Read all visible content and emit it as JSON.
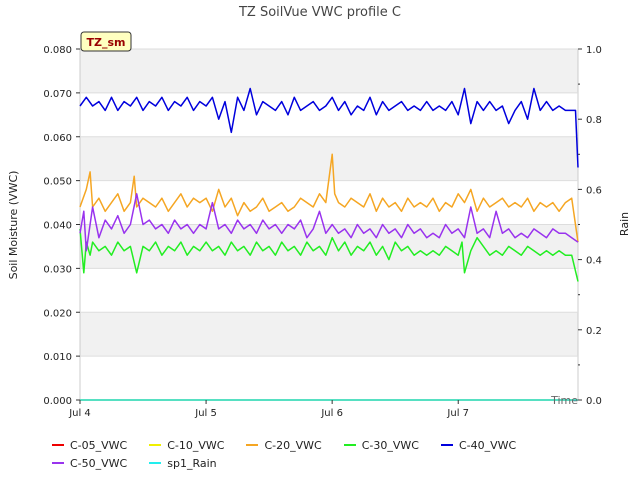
{
  "chart_data": {
    "type": "line",
    "title": "TZ SoilVue VWC profile C",
    "site_badge": "TZ_sm",
    "xlabel": "Time",
    "ylabel": "Soil Moisture (VWC)",
    "y2label": "Rain",
    "xlim": [
      0,
      3.95
    ],
    "ylim": [
      0,
      0.08
    ],
    "y2lim": [
      0,
      1.0
    ],
    "x_ticks": [
      {
        "value": 0,
        "label": "Jul 4"
      },
      {
        "value": 1,
        "label": "Jul 5"
      },
      {
        "value": 2,
        "label": "Jul 6"
      },
      {
        "value": 3,
        "label": "Jul 7"
      }
    ],
    "y_ticks": [
      "0.000",
      "0.010",
      "0.020",
      "0.030",
      "0.040",
      "0.050",
      "0.060",
      "0.070",
      "0.080"
    ],
    "y2_ticks": [
      "0.0",
      "0.2",
      "0.4",
      "0.6",
      "0.8",
      "1.0"
    ],
    "grid": true,
    "legend_position": "bottom",
    "series": [
      {
        "name": "C-05_VWC",
        "color": "#ee0000",
        "axis": "left",
        "x": [
          0,
          3.95
        ],
        "y": [
          0,
          0
        ]
      },
      {
        "name": "C-10_VWC",
        "color": "#f0f000",
        "axis": "left",
        "x": [
          0,
          3.95
        ],
        "y": [
          0,
          0
        ]
      },
      {
        "name": "C-20_VWC",
        "color": "#f5a623",
        "axis": "left",
        "x": [
          0,
          0.05,
          0.08,
          0.1,
          0.15,
          0.2,
          0.25,
          0.3,
          0.35,
          0.4,
          0.43,
          0.45,
          0.5,
          0.55,
          0.6,
          0.65,
          0.7,
          0.75,
          0.8,
          0.85,
          0.9,
          0.95,
          1.0,
          1.05,
          1.1,
          1.15,
          1.2,
          1.25,
          1.3,
          1.35,
          1.4,
          1.45,
          1.5,
          1.55,
          1.6,
          1.65,
          1.7,
          1.75,
          1.8,
          1.85,
          1.9,
          1.95,
          2.0,
          2.02,
          2.05,
          2.1,
          2.15,
          2.2,
          2.25,
          2.3,
          2.35,
          2.4,
          2.45,
          2.5,
          2.55,
          2.6,
          2.65,
          2.7,
          2.75,
          2.8,
          2.85,
          2.9,
          2.95,
          3.0,
          3.05,
          3.1,
          3.15,
          3.2,
          3.25,
          3.3,
          3.35,
          3.4,
          3.45,
          3.5,
          3.55,
          3.6,
          3.65,
          3.7,
          3.75,
          3.8,
          3.85,
          3.9,
          3.95
        ],
        "y": [
          0.044,
          0.048,
          0.052,
          0.044,
          0.046,
          0.043,
          0.045,
          0.047,
          0.043,
          0.045,
          0.051,
          0.044,
          0.046,
          0.045,
          0.044,
          0.046,
          0.043,
          0.045,
          0.047,
          0.044,
          0.046,
          0.045,
          0.046,
          0.043,
          0.048,
          0.044,
          0.046,
          0.042,
          0.045,
          0.043,
          0.044,
          0.046,
          0.043,
          0.044,
          0.045,
          0.043,
          0.044,
          0.046,
          0.045,
          0.044,
          0.047,
          0.045,
          0.056,
          0.047,
          0.045,
          0.044,
          0.046,
          0.045,
          0.044,
          0.047,
          0.043,
          0.046,
          0.044,
          0.045,
          0.043,
          0.046,
          0.044,
          0.045,
          0.044,
          0.046,
          0.043,
          0.045,
          0.044,
          0.047,
          0.045,
          0.048,
          0.043,
          0.046,
          0.044,
          0.045,
          0.046,
          0.044,
          0.045,
          0.044,
          0.046,
          0.043,
          0.045,
          0.044,
          0.045,
          0.043,
          0.045,
          0.046,
          0.036
        ]
      },
      {
        "name": "C-30_VWC",
        "color": "#22ee22",
        "axis": "left",
        "x": [
          0,
          0.03,
          0.05,
          0.08,
          0.1,
          0.15,
          0.2,
          0.25,
          0.3,
          0.35,
          0.4,
          0.45,
          0.5,
          0.55,
          0.6,
          0.65,
          0.7,
          0.75,
          0.8,
          0.85,
          0.9,
          0.95,
          1.0,
          1.05,
          1.1,
          1.15,
          1.2,
          1.25,
          1.3,
          1.35,
          1.4,
          1.45,
          1.5,
          1.55,
          1.6,
          1.65,
          1.7,
          1.75,
          1.8,
          1.85,
          1.9,
          1.95,
          2.0,
          2.05,
          2.1,
          2.15,
          2.2,
          2.25,
          2.3,
          2.35,
          2.4,
          2.45,
          2.5,
          2.55,
          2.6,
          2.65,
          2.7,
          2.75,
          2.8,
          2.85,
          2.9,
          2.95,
          3.0,
          3.03,
          3.05,
          3.1,
          3.15,
          3.2,
          3.25,
          3.3,
          3.35,
          3.4,
          3.45,
          3.5,
          3.55,
          3.6,
          3.65,
          3.7,
          3.75,
          3.8,
          3.85,
          3.9,
          3.95
        ],
        "y": [
          0.039,
          0.029,
          0.036,
          0.033,
          0.036,
          0.034,
          0.035,
          0.033,
          0.036,
          0.034,
          0.035,
          0.029,
          0.035,
          0.034,
          0.036,
          0.033,
          0.035,
          0.034,
          0.036,
          0.033,
          0.035,
          0.034,
          0.036,
          0.034,
          0.035,
          0.033,
          0.036,
          0.034,
          0.035,
          0.033,
          0.036,
          0.034,
          0.035,
          0.033,
          0.036,
          0.034,
          0.035,
          0.033,
          0.036,
          0.034,
          0.035,
          0.033,
          0.037,
          0.034,
          0.036,
          0.033,
          0.035,
          0.034,
          0.036,
          0.033,
          0.035,
          0.032,
          0.036,
          0.034,
          0.035,
          0.033,
          0.034,
          0.033,
          0.034,
          0.033,
          0.035,
          0.034,
          0.033,
          0.036,
          0.029,
          0.034,
          0.037,
          0.035,
          0.033,
          0.034,
          0.033,
          0.035,
          0.034,
          0.033,
          0.035,
          0.034,
          0.033,
          0.034,
          0.033,
          0.034,
          0.033,
          0.033,
          0.027
        ]
      },
      {
        "name": "C-40_VWC",
        "color": "#0000dd",
        "axis": "left",
        "x": [
          0,
          0.05,
          0.1,
          0.15,
          0.2,
          0.25,
          0.3,
          0.35,
          0.4,
          0.45,
          0.5,
          0.55,
          0.6,
          0.65,
          0.7,
          0.75,
          0.8,
          0.85,
          0.9,
          0.95,
          1.0,
          1.05,
          1.1,
          1.15,
          1.2,
          1.25,
          1.3,
          1.35,
          1.4,
          1.45,
          1.5,
          1.55,
          1.6,
          1.65,
          1.7,
          1.75,
          1.8,
          1.85,
          1.9,
          1.95,
          2.0,
          2.05,
          2.1,
          2.15,
          2.2,
          2.25,
          2.3,
          2.35,
          2.4,
          2.45,
          2.5,
          2.55,
          2.6,
          2.65,
          2.7,
          2.75,
          2.8,
          2.85,
          2.9,
          2.95,
          3.0,
          3.05,
          3.1,
          3.15,
          3.2,
          3.25,
          3.3,
          3.35,
          3.4,
          3.45,
          3.5,
          3.55,
          3.6,
          3.65,
          3.7,
          3.75,
          3.8,
          3.85,
          3.9,
          3.93,
          3.95
        ],
        "y": [
          0.067,
          0.069,
          0.067,
          0.068,
          0.066,
          0.069,
          0.066,
          0.068,
          0.067,
          0.069,
          0.066,
          0.068,
          0.067,
          0.069,
          0.066,
          0.068,
          0.067,
          0.069,
          0.066,
          0.068,
          0.067,
          0.069,
          0.064,
          0.068,
          0.061,
          0.069,
          0.066,
          0.071,
          0.065,
          0.068,
          0.067,
          0.066,
          0.068,
          0.065,
          0.069,
          0.066,
          0.067,
          0.068,
          0.066,
          0.067,
          0.069,
          0.066,
          0.068,
          0.065,
          0.067,
          0.066,
          0.069,
          0.065,
          0.068,
          0.066,
          0.067,
          0.068,
          0.066,
          0.067,
          0.066,
          0.068,
          0.066,
          0.067,
          0.066,
          0.068,
          0.065,
          0.071,
          0.063,
          0.068,
          0.066,
          0.068,
          0.066,
          0.067,
          0.063,
          0.066,
          0.068,
          0.064,
          0.071,
          0.066,
          0.068,
          0.066,
          0.067,
          0.066,
          0.066,
          0.066,
          0.053
        ]
      },
      {
        "name": "C-50_VWC",
        "color": "#9933ee",
        "axis": "left",
        "x": [
          0,
          0.03,
          0.05,
          0.08,
          0.1,
          0.15,
          0.2,
          0.25,
          0.3,
          0.35,
          0.4,
          0.45,
          0.5,
          0.55,
          0.6,
          0.65,
          0.7,
          0.75,
          0.8,
          0.85,
          0.9,
          0.95,
          1.0,
          1.05,
          1.1,
          1.15,
          1.2,
          1.25,
          1.3,
          1.35,
          1.4,
          1.45,
          1.5,
          1.55,
          1.6,
          1.65,
          1.7,
          1.75,
          1.8,
          1.85,
          1.9,
          1.95,
          2.0,
          2.05,
          2.1,
          2.15,
          2.2,
          2.25,
          2.3,
          2.35,
          2.4,
          2.45,
          2.5,
          2.55,
          2.6,
          2.65,
          2.7,
          2.75,
          2.8,
          2.85,
          2.9,
          2.95,
          3.0,
          3.05,
          3.1,
          3.15,
          3.2,
          3.25,
          3.3,
          3.35,
          3.4,
          3.45,
          3.5,
          3.55,
          3.6,
          3.65,
          3.7,
          3.75,
          3.8,
          3.85,
          3.9,
          3.95
        ],
        "y": [
          0.038,
          0.043,
          0.034,
          0.04,
          0.044,
          0.037,
          0.041,
          0.039,
          0.042,
          0.038,
          0.04,
          0.047,
          0.04,
          0.041,
          0.039,
          0.04,
          0.038,
          0.041,
          0.039,
          0.04,
          0.038,
          0.04,
          0.039,
          0.045,
          0.039,
          0.04,
          0.038,
          0.041,
          0.039,
          0.04,
          0.038,
          0.041,
          0.039,
          0.04,
          0.038,
          0.04,
          0.039,
          0.041,
          0.037,
          0.039,
          0.043,
          0.038,
          0.04,
          0.038,
          0.039,
          0.037,
          0.04,
          0.038,
          0.039,
          0.037,
          0.04,
          0.038,
          0.039,
          0.037,
          0.04,
          0.038,
          0.039,
          0.037,
          0.038,
          0.037,
          0.04,
          0.038,
          0.039,
          0.037,
          0.044,
          0.038,
          0.039,
          0.037,
          0.043,
          0.038,
          0.039,
          0.037,
          0.038,
          0.037,
          0.039,
          0.038,
          0.037,
          0.039,
          0.038,
          0.038,
          0.037,
          0.036
        ]
      },
      {
        "name": "sp1_Rain",
        "color": "#22eeee",
        "axis": "right",
        "x": [
          0,
          3.95
        ],
        "y": [
          0,
          0
        ]
      }
    ]
  }
}
